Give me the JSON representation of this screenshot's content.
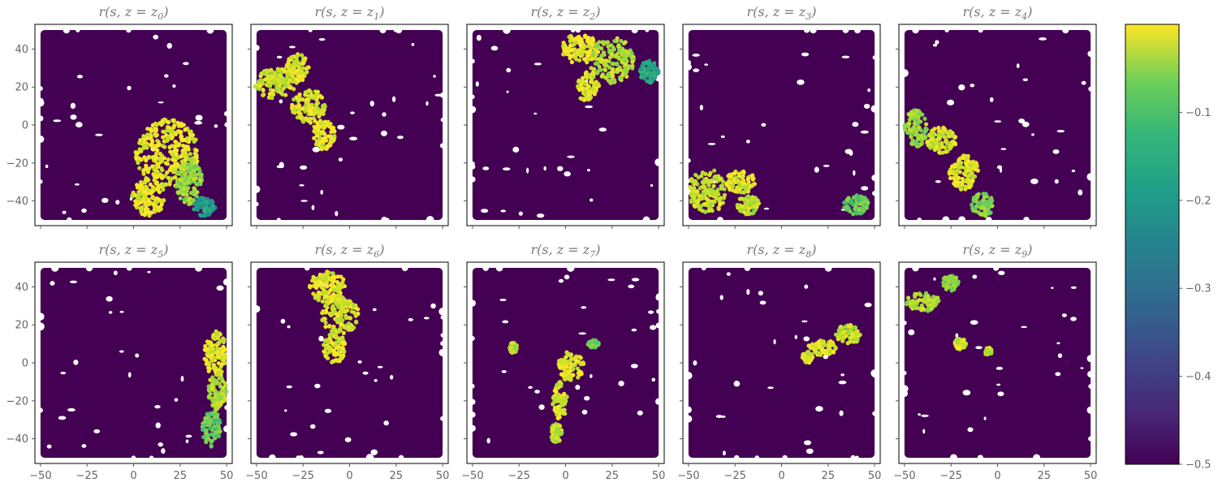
{
  "chart_data": {
    "type": "scatter",
    "layout": "2x5 small multiples with shared axes and one shared colorbar",
    "xlim": [
      -53,
      53
    ],
    "ylim": [
      -53,
      53
    ],
    "x_ticks": [
      -50,
      -25,
      0,
      25,
      50
    ],
    "y_ticks": [
      -40,
      -20,
      0,
      20,
      40
    ],
    "x_tick_labels": [
      "−50",
      "−25",
      "0",
      "25",
      "50"
    ],
    "y_tick_labels": [
      "−40",
      "−20",
      "0",
      "20",
      "40"
    ],
    "grid": false,
    "colormap": "viridis",
    "colorbar": {
      "range": [
        -0.5,
        0.0
      ],
      "ticks": [
        -0.5,
        -0.4,
        -0.3,
        -0.2,
        -0.1
      ],
      "tick_labels": [
        "−0.5",
        "−0.4",
        "−0.3",
        "−0.2",
        "−0.1"
      ]
    },
    "background_value": -0.5,
    "colors": {
      "background_points": "#440154",
      "low": "#440154",
      "mid": "#21918c",
      "high": "#fde725"
    },
    "panels": [
      {
        "title": "r(s,z=z_0)",
        "title_main": "r(s, z = z",
        "title_sub": "0",
        "title_end": ")",
        "high_reward_regions": [
          {
            "x": 18,
            "y": -15,
            "rx": 17,
            "ry": 18,
            "value": -0.02
          },
          {
            "x": 8,
            "y": -38,
            "rx": 9,
            "ry": 10,
            "value": -0.02
          },
          {
            "x": 30,
            "y": -30,
            "rx": 7,
            "ry": 12,
            "value": -0.08
          },
          {
            "x": 38,
            "y": -43,
            "rx": 6,
            "ry": 5,
            "value": -0.22
          }
        ]
      },
      {
        "title": "r(s,z=z_1)",
        "title_main": "r(s, z = z",
        "title_sub": "1",
        "title_end": ")",
        "high_reward_regions": [
          {
            "x": -40,
            "y": 22,
            "rx": 11,
            "ry": 8,
            "value": -0.04
          },
          {
            "x": -28,
            "y": 30,
            "rx": 6,
            "ry": 8,
            "value": -0.02
          },
          {
            "x": -22,
            "y": 10,
            "rx": 9,
            "ry": 9,
            "value": -0.03
          },
          {
            "x": -14,
            "y": -5,
            "rx": 6,
            "ry": 8,
            "value": -0.02
          }
        ]
      },
      {
        "title": "r(s,z=z_2)",
        "title_main": "r(s, z = z",
        "title_sub": "2",
        "title_end": ")",
        "high_reward_regions": [
          {
            "x": 8,
            "y": 40,
            "rx": 10,
            "ry": 8,
            "value": -0.02
          },
          {
            "x": 25,
            "y": 34,
            "rx": 12,
            "ry": 12,
            "value": -0.06
          },
          {
            "x": 12,
            "y": 20,
            "rx": 6,
            "ry": 8,
            "value": -0.02
          },
          {
            "x": 45,
            "y": 28,
            "rx": 5,
            "ry": 6,
            "value": -0.2
          }
        ]
      },
      {
        "title": "r(s,z=z_3)",
        "title_main": "r(s, z = z",
        "title_sub": "3",
        "title_end": ")",
        "high_reward_regions": [
          {
            "x": -40,
            "y": -35,
            "rx": 10,
            "ry": 12,
            "value": -0.04
          },
          {
            "x": -22,
            "y": -30,
            "rx": 8,
            "ry": 6,
            "value": -0.03
          },
          {
            "x": -18,
            "y": -42,
            "rx": 6,
            "ry": 5,
            "value": -0.05
          },
          {
            "x": 40,
            "y": -42,
            "rx": 7,
            "ry": 5,
            "value": -0.12
          }
        ]
      },
      {
        "title": "r(s,z=z_4)",
        "title_main": "r(s, z = z",
        "title_sub": "4",
        "title_end": ")",
        "high_reward_regions": [
          {
            "x": -44,
            "y": -2,
            "rx": 6,
            "ry": 10,
            "value": -0.08
          },
          {
            "x": -30,
            "y": -8,
            "rx": 8,
            "ry": 7,
            "value": -0.04
          },
          {
            "x": -18,
            "y": -25,
            "rx": 8,
            "ry": 9,
            "value": -0.02
          },
          {
            "x": -8,
            "y": -42,
            "rx": 6,
            "ry": 6,
            "value": -0.1
          }
        ]
      },
      {
        "title": "r(s,z=z_5)",
        "title_main": "r(s, z = z",
        "title_sub": "5",
        "title_end": ")",
        "high_reward_regions": [
          {
            "x": 44,
            "y": 5,
            "rx": 6,
            "ry": 12,
            "value": -0.02
          },
          {
            "x": 45,
            "y": -15,
            "rx": 5,
            "ry": 10,
            "value": -0.06
          },
          {
            "x": 42,
            "y": -35,
            "rx": 5,
            "ry": 10,
            "value": -0.12
          }
        ]
      },
      {
        "title": "r(s,z=z_6)",
        "title_main": "r(s, z = z",
        "title_sub": "6",
        "title_end": ")",
        "high_reward_regions": [
          {
            "x": -12,
            "y": 40,
            "rx": 10,
            "ry": 8,
            "value": -0.02
          },
          {
            "x": -5,
            "y": 25,
            "rx": 10,
            "ry": 10,
            "value": -0.03
          },
          {
            "x": -8,
            "y": 8,
            "rx": 6,
            "ry": 8,
            "value": -0.02
          }
        ]
      },
      {
        "title": "r(s,z=z_7)",
        "title_main": "r(s, z = z",
        "title_sub": "7",
        "title_end": ")",
        "high_reward_regions": [
          {
            "x": 3,
            "y": -2,
            "rx": 7,
            "ry": 8,
            "value": -0.02
          },
          {
            "x": -3,
            "y": -20,
            "rx": 4,
            "ry": 10,
            "value": -0.03
          },
          {
            "x": -5,
            "y": -37,
            "rx": 3,
            "ry": 5,
            "value": -0.05
          },
          {
            "x": -28,
            "y": 8,
            "rx": 2,
            "ry": 3,
            "value": -0.05
          },
          {
            "x": 15,
            "y": 10,
            "rx": 3,
            "ry": 2,
            "value": -0.12
          }
        ]
      },
      {
        "title": "r(s,z=z_8)",
        "title_main": "r(s, z = z",
        "title_sub": "8",
        "title_end": ")",
        "high_reward_regions": [
          {
            "x": 22,
            "y": 8,
            "rx": 8,
            "ry": 4,
            "value": -0.02
          },
          {
            "x": 36,
            "y": 15,
            "rx": 7,
            "ry": 5,
            "value": -0.05
          },
          {
            "x": 14,
            "y": 3,
            "rx": 3,
            "ry": 3,
            "value": -0.03
          }
        ]
      },
      {
        "title": "r(s,z=z_9)",
        "title_main": "r(s, z = z",
        "title_sub": "9",
        "title_end": ")",
        "high_reward_regions": [
          {
            "x": -40,
            "y": 32,
            "rx": 9,
            "ry": 5,
            "value": -0.06
          },
          {
            "x": -25,
            "y": 42,
            "rx": 5,
            "ry": 4,
            "value": -0.08
          },
          {
            "x": -20,
            "y": 10,
            "rx": 3,
            "ry": 3,
            "value": -0.03
          },
          {
            "x": -5,
            "y": 6,
            "rx": 2,
            "ry": 2,
            "value": -0.04
          }
        ]
      }
    ]
  }
}
